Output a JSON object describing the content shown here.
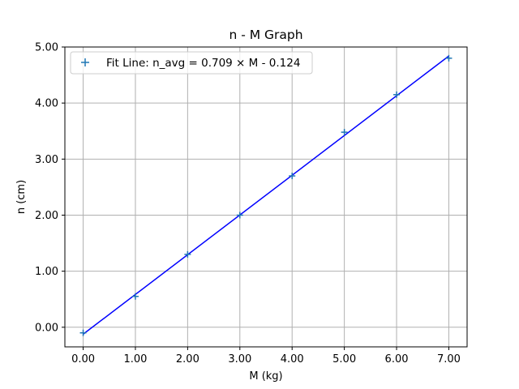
{
  "chart_data": {
    "type": "scatter",
    "title": "n - M Graph",
    "xlabel": "M (kg)",
    "ylabel": "n (cm)",
    "xlim": [
      -0.35,
      7.35
    ],
    "ylim": [
      -0.35,
      5.0
    ],
    "xticks": [
      0,
      1,
      2,
      3,
      4,
      5,
      6,
      7
    ],
    "xtick_labels": [
      "0.00",
      "1.00",
      "2.00",
      "3.00",
      "4.00",
      "5.00",
      "6.00",
      "7.00"
    ],
    "yticks": [
      0,
      1,
      2,
      3,
      4,
      5
    ],
    "ytick_labels": [
      "0.00",
      "1.00",
      "2.00",
      "3.00",
      "4.00",
      "5.00"
    ],
    "grid": true,
    "legend_position": "top-left",
    "series": [
      {
        "name": "Fit Line: n_avg = 0.709 × M - 0.124",
        "kind": "scatter",
        "marker": "+",
        "color": "#1f77b4",
        "x": [
          0,
          1,
          2,
          3,
          4,
          5,
          6,
          7
        ],
        "y": [
          -0.1,
          0.55,
          1.3,
          2.0,
          2.7,
          3.48,
          4.15,
          4.8
        ]
      },
      {
        "kind": "line",
        "color": "#0000ff",
        "x": [
          0,
          7
        ],
        "y": [
          -0.124,
          4.839
        ]
      }
    ]
  }
}
